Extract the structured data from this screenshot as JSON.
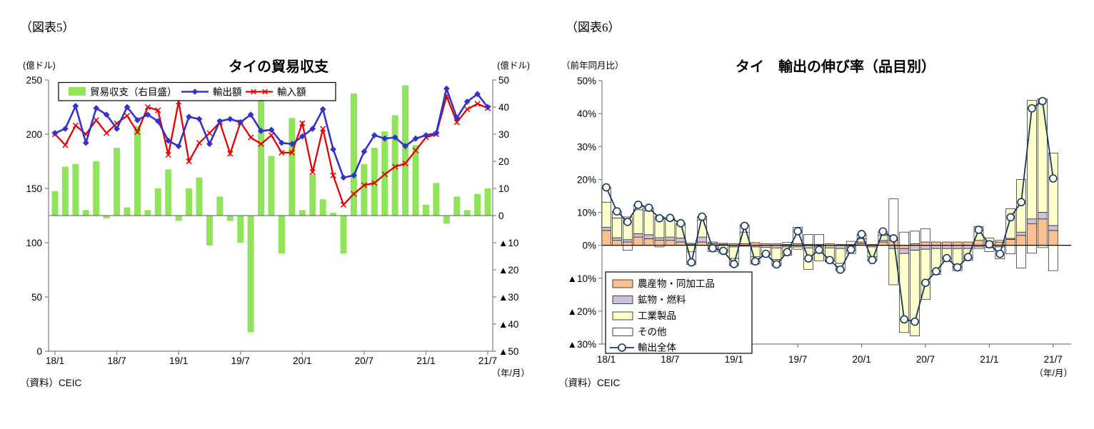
{
  "page": {
    "background": "#ffffff"
  },
  "figure5": {
    "tag": "（図表5）",
    "unit_left": "(億ドル)",
    "unit_right": "(億ドル)",
    "title": "タイの貿易収支",
    "legend": {
      "balance": "貿易収支（右目盛）",
      "exports": "輸出額",
      "imports": "輸入額"
    },
    "source": "（資料）CEIC",
    "x_unit": "（年/月）"
  },
  "figure6": {
    "tag": "（図表6）",
    "unit": "（前年同月比）",
    "title": "タイ　輸出の伸び率（品目別）",
    "legend": {
      "agri": "農産物・同加工品",
      "mineral": "鉱物・燃料",
      "industrial": "工業製品",
      "other": "その他",
      "total": "輸出全体"
    },
    "source": "（資料）CEIC",
    "x_unit": "（年/月）"
  },
  "chart_data": [
    {
      "id": "figure5",
      "type": "bar",
      "title": "タイの貿易収支",
      "months": [
        "18/1",
        "18/2",
        "18/3",
        "18/4",
        "18/5",
        "18/6",
        "18/7",
        "18/8",
        "18/9",
        "18/10",
        "18/11",
        "18/12",
        "19/1",
        "19/2",
        "19/3",
        "19/4",
        "19/5",
        "19/6",
        "19/7",
        "19/8",
        "19/9",
        "19/10",
        "19/11",
        "19/12",
        "20/1",
        "20/2",
        "20/3",
        "20/4",
        "20/5",
        "20/6",
        "20/7",
        "20/8",
        "20/9",
        "20/10",
        "20/11",
        "20/12",
        "21/1",
        "21/2",
        "21/3",
        "21/4",
        "21/5",
        "21/6",
        "21/7"
      ],
      "x_tick_indices": [
        0,
        6,
        12,
        18,
        24,
        30,
        36,
        42
      ],
      "x_tick_labels": [
        "18/1",
        "18/7",
        "19/1",
        "19/7",
        "20/1",
        "20/7",
        "21/1",
        "21/7"
      ],
      "axis_left": {
        "label": "(億ドル)",
        "min": 0,
        "max": 250,
        "step": 50,
        "tick_labels": [
          "0",
          "50",
          "100",
          "150",
          "200",
          "250"
        ]
      },
      "axis_right": {
        "label": "(億ドル)",
        "min": -50,
        "max": 50,
        "step": 10,
        "negative_prefix": "▲",
        "tick_labels": [
          "▲50",
          "▲40",
          "▲30",
          "▲20",
          "▲10",
          "0",
          "10",
          "20",
          "30",
          "40",
          "50"
        ]
      },
      "grid": false,
      "legend_position": "top-inside",
      "series": [
        {
          "name": "貿易収支（右目盛）",
          "type": "bar",
          "axis": "right",
          "color": "#90E45A",
          "values": [
            9,
            18,
            19,
            2,
            20,
            -1,
            25,
            3,
            33,
            2,
            10,
            17,
            -2,
            10,
            14,
            -11,
            7,
            -2,
            -10,
            -43,
            44,
            22,
            -14,
            36,
            2,
            15,
            6,
            1,
            -14,
            45,
            19,
            25,
            31,
            37,
            48,
            26,
            4,
            12,
            -3,
            7,
            2,
            8,
            10
          ]
        },
        {
          "name": "輸出額",
          "type": "line",
          "axis": "left",
          "color": "#3333CC",
          "marker": "diamond",
          "values": [
            201,
            205,
            226,
            192,
            224,
            218,
            205,
            225,
            213,
            218,
            212,
            194,
            189,
            216,
            214,
            191,
            212,
            214,
            211,
            218,
            203,
            204,
            192,
            191,
            198,
            205,
            223,
            186,
            160,
            162,
            184,
            199,
            196,
            197,
            189,
            196,
            199,
            201,
            242,
            215,
            230,
            237,
            225
          ]
        },
        {
          "name": "輸入額",
          "type": "line",
          "axis": "left",
          "color": "#E60000",
          "marker": "x",
          "values": [
            200,
            190,
            208,
            200,
            213,
            201,
            210,
            217,
            202,
            225,
            222,
            181,
            230,
            175,
            192,
            201,
            211,
            182,
            211,
            197,
            191,
            199,
            183,
            183,
            210,
            165,
            205,
            162,
            135,
            145,
            153,
            155,
            163,
            170,
            173,
            185,
            197,
            200,
            235,
            211,
            223,
            228,
            224
          ]
        }
      ]
    },
    {
      "id": "figure6",
      "type": "bar",
      "subtype": "stacked-bar-with-line",
      "title": "タイ　輸出の伸び率（品目別）",
      "months": [
        "18/1",
        "18/2",
        "18/3",
        "18/4",
        "18/5",
        "18/6",
        "18/7",
        "18/8",
        "18/9",
        "18/10",
        "18/11",
        "18/12",
        "19/1",
        "19/2",
        "19/3",
        "19/4",
        "19/5",
        "19/6",
        "19/7",
        "19/8",
        "19/9",
        "19/10",
        "19/11",
        "19/12",
        "20/1",
        "20/2",
        "20/3",
        "20/4",
        "20/5",
        "20/6",
        "20/7",
        "20/8",
        "20/9",
        "20/10",
        "20/11",
        "20/12",
        "21/1",
        "21/2",
        "21/3",
        "21/4",
        "21/5",
        "21/6",
        "21/7"
      ],
      "x_tick_indices": [
        0,
        6,
        12,
        18,
        24,
        30,
        36,
        42
      ],
      "x_tick_labels": [
        "18/1",
        "18/7",
        "19/1",
        "19/7",
        "20/1",
        "20/7",
        "21/1",
        "21/7"
      ],
      "axis": {
        "label": "（前年同月比）",
        "min": -30,
        "max": 50,
        "step": 10,
        "unit": "%",
        "negative_prefix": "▲",
        "tick_labels": [
          "▲30%",
          "▲20%",
          "▲10%",
          "0%",
          "10%",
          "20%",
          "30%",
          "40%",
          "50%"
        ]
      },
      "grid": false,
      "legend_position": "bottom-left-inside",
      "series": [
        {
          "name": "農産物・同加工品",
          "type": "bar",
          "color": "#FAC090",
          "values": [
            4.5,
            1.5,
            1.0,
            2.5,
            2.0,
            1.5,
            1.5,
            1.0,
            0.3,
            1.0,
            0.5,
            0.3,
            0.5,
            0.5,
            0.8,
            0.5,
            0.5,
            0.3,
            0.5,
            0.3,
            0.3,
            0.5,
            0.3,
            0.3,
            0.5,
            0.3,
            1.0,
            1.5,
            -1.0,
            0.5,
            1.0,
            1.0,
            1.0,
            1.0,
            1.0,
            1.5,
            1.2,
            1.0,
            1.8,
            3.0,
            6.5,
            8.0,
            4.5
          ]
        },
        {
          "name": "鉱物・燃料",
          "type": "bar",
          "color": "#CCC0DA",
          "values": [
            1.0,
            0.8,
            0.7,
            1.0,
            1.2,
            0.8,
            1.0,
            1.2,
            0.3,
            1.5,
            0.5,
            0.3,
            -0.5,
            -0.3,
            -0.5,
            -0.6,
            -0.8,
            -0.5,
            -0.5,
            -0.8,
            -0.5,
            -0.8,
            -1.0,
            -0.5,
            0.5,
            -0.5,
            0.5,
            -1.0,
            -1.5,
            -1.5,
            -1.2,
            -1.0,
            -1.0,
            -1.0,
            -1.0,
            -0.5,
            -0.7,
            -0.5,
            0.3,
            1.0,
            1.5,
            2.0,
            1.5
          ]
        },
        {
          "name": "工業製品",
          "type": "bar",
          "color": "#FFFFCC",
          "values": [
            7.6,
            6.0,
            6.9,
            7.3,
            7.2,
            6.4,
            5.3,
            4.0,
            -2.0,
            5.2,
            -1.0,
            -1.5,
            -3.5,
            3.5,
            -3.0,
            -2.0,
            -3.5,
            -2.5,
            -0.7,
            -6.5,
            -4.2,
            -4.0,
            -4.5,
            -2.0,
            1.0,
            -3.0,
            1.5,
            -11.0,
            -24.0,
            -26.0,
            -15.2,
            -7.0,
            -3.0,
            -5.5,
            -3.0,
            4.2,
            1.0,
            0.5,
            9.0,
            16.0,
            36.0,
            34.5,
            22.0
          ]
        },
        {
          "name": "その他",
          "type": "bar",
          "color": "#FFFFFF",
          "values": [
            4.5,
            2.0,
            -1.5,
            1.5,
            1.0,
            -0.5,
            0.5,
            0.5,
            -3.8,
            1.0,
            -0.9,
            -0.8,
            -2.2,
            2.2,
            -2.2,
            -0.5,
            -2.0,
            0.6,
            5.0,
            3.0,
            3.0,
            -0.2,
            -2.2,
            0.9,
            1.4,
            -1.3,
            1.2,
            12.6,
            4.0,
            3.8,
            4.0,
            -0.9,
            -0.9,
            -1.2,
            -0.6,
            -0.5,
            -1.2,
            -3.6,
            -2.6,
            -6.9,
            -2.4,
            -0.7,
            -7.7
          ]
        },
        {
          "name": "輸出全体",
          "type": "line",
          "color": "#17375E",
          "marker": "open-circle",
          "values": [
            17.6,
            10.3,
            7.1,
            12.3,
            11.4,
            8.2,
            8.3,
            6.7,
            -5.2,
            8.7,
            -0.9,
            -1.7,
            -5.7,
            5.9,
            -4.9,
            -2.6,
            -5.8,
            -2.1,
            4.3,
            -4.0,
            -1.4,
            -4.5,
            -7.4,
            -1.3,
            3.4,
            -4.5,
            4.2,
            2.1,
            -22.5,
            -23.2,
            -11.4,
            -7.9,
            -3.9,
            -6.7,
            -3.6,
            4.7,
            0.3,
            -2.6,
            8.5,
            13.1,
            41.6,
            43.8,
            20.3
          ]
        }
      ]
    }
  ]
}
